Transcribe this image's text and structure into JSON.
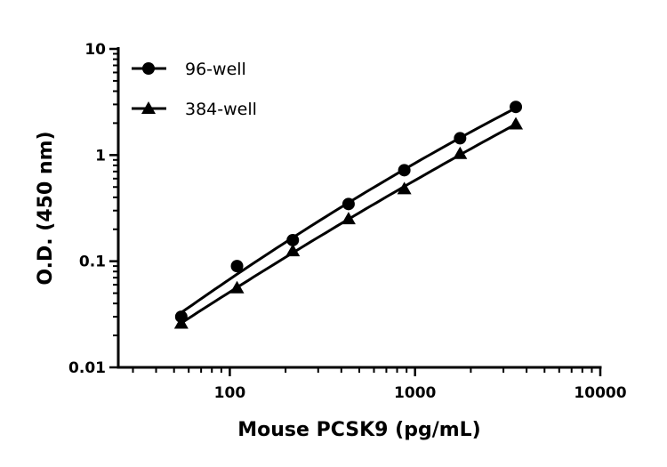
{
  "chart_data": {
    "type": "line",
    "title": "",
    "xlabel": "Mouse PCSK9 (pg/mL)",
    "ylabel": "O.D. (450 nm)",
    "xscale": "log",
    "yscale": "log",
    "xlim": [
      25,
      10000
    ],
    "ylim": [
      0.01,
      10
    ],
    "xticks": [
      "100",
      "1000",
      "10000"
    ],
    "yticks": [
      "0.01",
      "0.1",
      "1",
      "10"
    ],
    "grid": false,
    "legend_position": "top-left",
    "x": [
      54.7,
      109.4,
      218.8,
      437.5,
      875,
      1750,
      3500
    ],
    "series": [
      {
        "name": "96-well",
        "marker": "circle",
        "color": "#000000",
        "values": [
          0.03,
          0.09,
          0.158,
          0.346,
          0.72,
          1.44,
          2.84
        ]
      },
      {
        "name": "384-well",
        "marker": "triangle",
        "color": "#000000",
        "values": [
          0.026,
          0.056,
          0.125,
          0.25,
          0.48,
          1.03,
          1.96
        ]
      }
    ]
  }
}
